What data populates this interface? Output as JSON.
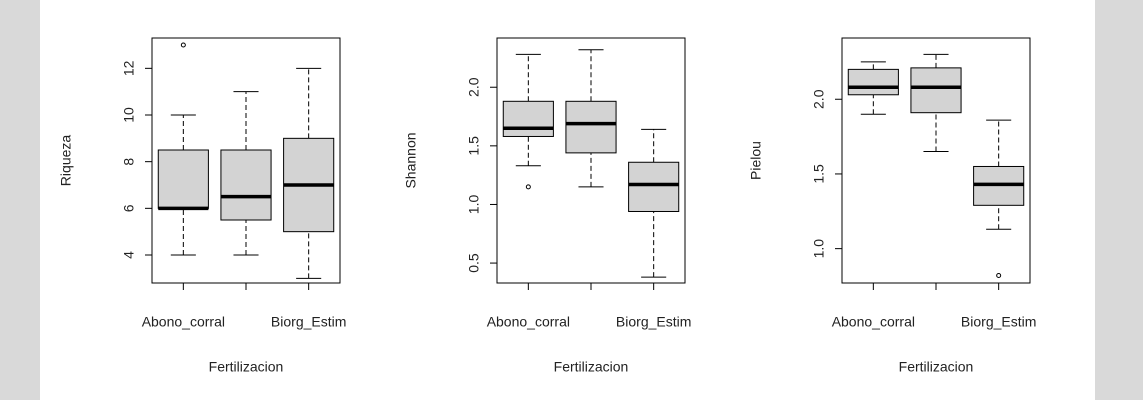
{
  "chart_data": [
    {
      "type": "box",
      "xlabel": "Fertilizacion",
      "ylabel": "Riqueza",
      "categories": [
        "Abono_corral",
        null,
        "Biorg_Estim"
      ],
      "color": "#d3d3d3",
      "boxes": [
        {
          "low": 4,
          "q1": 6,
          "median": 6,
          "q3": 8.5,
          "high": 10,
          "outliers": [
            13
          ]
        },
        {
          "low": 4,
          "q1": 5.5,
          "median": 6.5,
          "q3": 8.5,
          "high": 11,
          "outliers": []
        },
        {
          "low": 3,
          "q1": 5,
          "median": 7,
          "q3": 9,
          "high": 12,
          "outliers": []
        }
      ],
      "ylim": [
        2.8,
        13.3
      ],
      "yticks": [
        4,
        6,
        8,
        10,
        12
      ]
    },
    {
      "type": "box",
      "xlabel": "Fertilizacion",
      "ylabel": "Shannon",
      "categories": [
        "Abono_corral",
        null,
        "Biorg_Estim"
      ],
      "color": "#d3d3d3",
      "boxes": [
        {
          "low": 1.33,
          "q1": 1.58,
          "median": 1.65,
          "q3": 1.88,
          "high": 2.28,
          "outliers": [
            1.15
          ]
        },
        {
          "low": 1.15,
          "q1": 1.44,
          "median": 1.69,
          "q3": 1.88,
          "high": 2.32,
          "outliers": []
        },
        {
          "low": 0.38,
          "q1": 0.94,
          "median": 1.17,
          "q3": 1.36,
          "high": 1.64,
          "outliers": []
        }
      ],
      "ylim": [
        0.33,
        2.42
      ],
      "yticks": [
        0.5,
        {
          "value": 1,
          "label": "1.0"
        },
        1.5,
        {
          "value": 2,
          "label": "2.0"
        }
      ]
    },
    {
      "type": "box",
      "xlabel": "Fertilizacion",
      "ylabel": "Pielou",
      "categories": [
        "Abono_corral",
        null,
        "Biorg_Estim"
      ],
      "color": "#d3d3d3",
      "boxes": [
        {
          "low": 1.9,
          "q1": 2.03,
          "median": 2.08,
          "q3": 2.2,
          "high": 2.25,
          "outliers": []
        },
        {
          "low": 1.65,
          "q1": 1.91,
          "median": 2.08,
          "q3": 2.21,
          "high": 2.3,
          "outliers": []
        },
        {
          "low": 1.13,
          "q1": 1.29,
          "median": 1.43,
          "q3": 1.55,
          "high": 1.86,
          "outliers": [
            0.82
          ]
        }
      ],
      "ylim": [
        0.77,
        2.41
      ],
      "yticks": [
        {
          "value": 1,
          "label": "1.0"
        },
        1.5,
        {
          "value": 2,
          "label": "2.0"
        }
      ]
    }
  ]
}
